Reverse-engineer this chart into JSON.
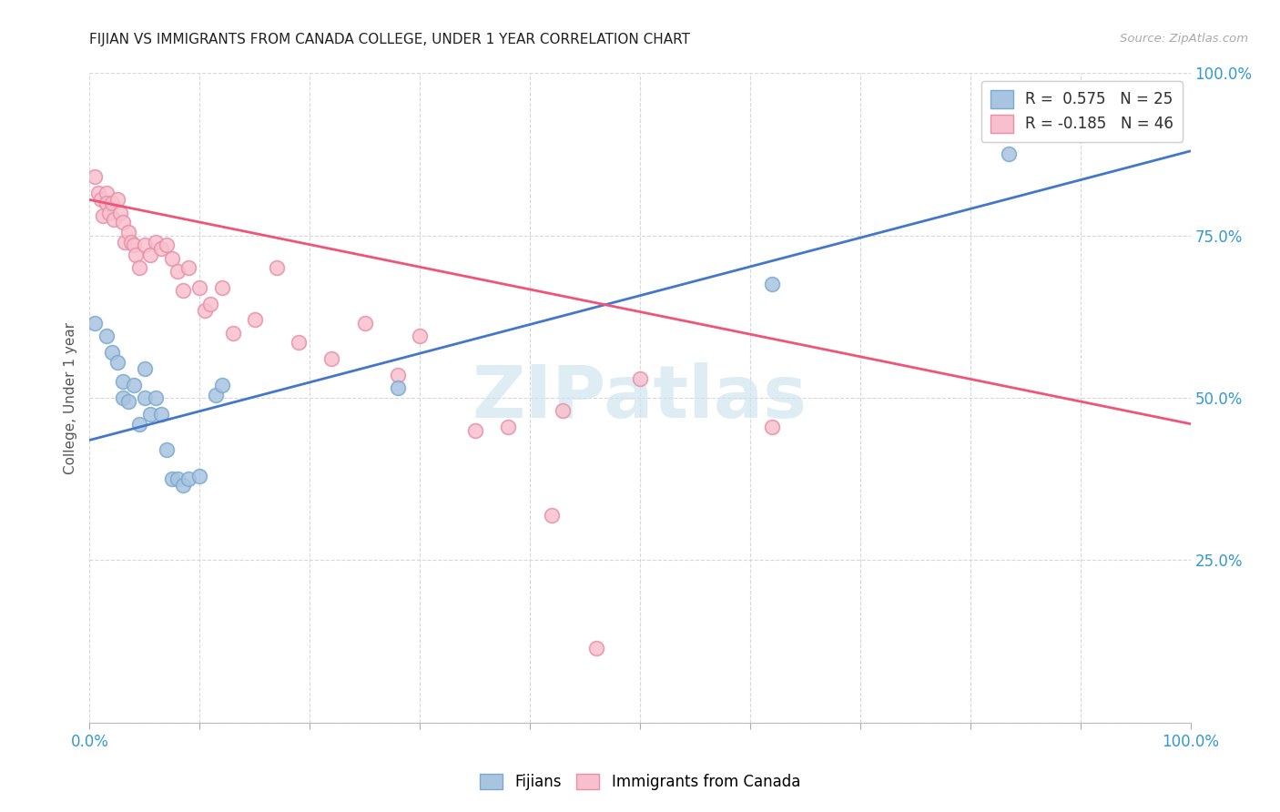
{
  "title": "FIJIAN VS IMMIGRANTS FROM CANADA COLLEGE, UNDER 1 YEAR CORRELATION CHART",
  "source": "Source: ZipAtlas.com",
  "ylabel": "College, Under 1 year",
  "x_range": [
    0,
    1
  ],
  "y_range": [
    0,
    1
  ],
  "fijians_color_face": "#a8c4e0",
  "fijians_color_edge": "#7aaad0",
  "immigrants_color_face": "#f8c0ce",
  "immigrants_color_edge": "#e890a8",
  "R_fijians": "0.575",
  "N_fijians": "25",
  "R_immigrants": "-0.185",
  "N_immigrants": "46",
  "fijians_x": [
    0.005,
    0.015,
    0.02,
    0.025,
    0.03,
    0.03,
    0.035,
    0.04,
    0.045,
    0.05,
    0.05,
    0.055,
    0.06,
    0.065,
    0.07,
    0.075,
    0.08,
    0.085,
    0.09,
    0.1,
    0.115,
    0.12,
    0.28,
    0.62,
    0.835
  ],
  "fijians_y": [
    0.615,
    0.595,
    0.57,
    0.555,
    0.525,
    0.5,
    0.495,
    0.52,
    0.46,
    0.545,
    0.5,
    0.475,
    0.5,
    0.475,
    0.42,
    0.375,
    0.375,
    0.365,
    0.375,
    0.38,
    0.505,
    0.52,
    0.515,
    0.675,
    0.875
  ],
  "immigrants_x": [
    0.005,
    0.008,
    0.01,
    0.012,
    0.015,
    0.015,
    0.018,
    0.02,
    0.022,
    0.025,
    0.028,
    0.03,
    0.032,
    0.035,
    0.038,
    0.04,
    0.042,
    0.045,
    0.05,
    0.055,
    0.06,
    0.065,
    0.07,
    0.075,
    0.08,
    0.085,
    0.09,
    0.1,
    0.105,
    0.11,
    0.12,
    0.13,
    0.15,
    0.17,
    0.19,
    0.22,
    0.25,
    0.28,
    0.3,
    0.35,
    0.38,
    0.42,
    0.43,
    0.46,
    0.5,
    0.62
  ],
  "immigrants_y": [
    0.84,
    0.815,
    0.805,
    0.78,
    0.815,
    0.8,
    0.785,
    0.8,
    0.775,
    0.805,
    0.785,
    0.77,
    0.74,
    0.755,
    0.74,
    0.735,
    0.72,
    0.7,
    0.735,
    0.72,
    0.74,
    0.73,
    0.735,
    0.715,
    0.695,
    0.665,
    0.7,
    0.67,
    0.635,
    0.645,
    0.67,
    0.6,
    0.62,
    0.7,
    0.585,
    0.56,
    0.615,
    0.535,
    0.595,
    0.45,
    0.455,
    0.32,
    0.48,
    0.115,
    0.53,
    0.455
  ],
  "blue_line_x": [
    0.0,
    1.0
  ],
  "blue_line_y": [
    0.435,
    0.88
  ],
  "pink_line_x": [
    0.0,
    1.0
  ],
  "pink_line_y": [
    0.805,
    0.46
  ],
  "watermark": "ZIPatlas",
  "watermark_color": "#d0e4f0",
  "grid_color": "#d8d8d8",
  "title_color": "#222222",
  "right_tick_color": "#3399cc",
  "bottom_tick_color": "#3399cc",
  "x_ticks": [
    0.0,
    0.1,
    0.2,
    0.3,
    0.4,
    0.5,
    0.6,
    0.7,
    0.8,
    0.9,
    1.0
  ],
  "y_ticks": [
    0.0,
    0.25,
    0.5,
    0.75,
    1.0
  ]
}
